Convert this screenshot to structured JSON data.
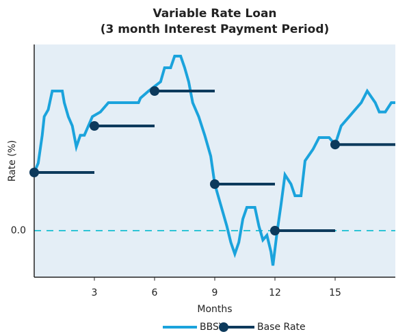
{
  "chart_data": {
    "type": "line",
    "title": "Variable Rate Loan",
    "subtitle": "(3 month Interest Payment Period)",
    "x_label": "Months",
    "y_label": "Rate (%)",
    "xlim": [
      0,
      18
    ],
    "ylim": [
      -2,
      8
    ],
    "xticks": [
      3,
      6,
      9,
      12,
      15
    ],
    "yticks": [
      {
        "value": 0,
        "label": "0.0"
      }
    ],
    "grid": true,
    "grid_color": "#2ec4d6",
    "background": "#e4eef6",
    "legend": "bottom",
    "series": [
      {
        "name": "BBSY",
        "color": "#1ba3dc",
        "style": "line",
        "x": [
          0,
          0.2,
          0.4,
          0.5,
          0.7,
          0.9,
          1.4,
          1.5,
          1.7,
          1.9,
          2.1,
          2.3,
          2.5,
          2.7,
          2.9,
          3.3,
          3.7,
          4.0,
          5.2,
          5.3,
          5.7,
          6.3,
          6.5,
          6.8,
          7.0,
          7.3,
          7.5,
          7.7,
          7.9,
          8.2,
          8.5,
          8.8,
          9.0,
          9.3,
          9.6,
          9.8,
          10.0,
          10.2,
          10.4,
          10.6,
          11.0,
          11.2,
          11.4,
          11.6,
          11.8,
          11.9,
          12.1,
          12.3,
          12.5,
          12.8,
          13.0,
          13.3,
          13.5,
          13.9,
          14.2,
          14.7,
          15.0,
          15.3,
          15.7,
          16.0,
          16.3,
          16.6,
          17.0,
          17.2,
          17.5,
          17.8,
          18.0
        ],
        "values": [
          2.5,
          2.9,
          4.1,
          4.9,
          5.2,
          6.0,
          6.0,
          5.5,
          4.9,
          4.5,
          3.6,
          4.1,
          4.1,
          4.5,
          4.9,
          5.1,
          5.5,
          5.5,
          5.5,
          5.7,
          6.0,
          6.4,
          7.0,
          7.0,
          7.5,
          7.5,
          7.0,
          6.4,
          5.5,
          4.9,
          4.1,
          3.2,
          2.0,
          1.1,
          0.2,
          -0.5,
          -1.0,
          -0.5,
          0.5,
          1.0,
          1.0,
          0.2,
          -0.4,
          -0.2,
          -0.9,
          -1.5,
          -0.1,
          1.1,
          2.4,
          2.0,
          1.5,
          1.5,
          3.0,
          3.5,
          4.0,
          4.0,
          3.7,
          4.5,
          4.9,
          5.2,
          5.5,
          6.0,
          5.5,
          5.1,
          5.1,
          5.5,
          5.5
        ]
      },
      {
        "name": "Base Rate",
        "color": "#0d3a5c",
        "style": "step-dot",
        "x": [
          0,
          3,
          6,
          9,
          12,
          15
        ],
        "values": [
          2.5,
          4.5,
          6.0,
          2.0,
          0.0,
          3.7
        ]
      }
    ]
  }
}
